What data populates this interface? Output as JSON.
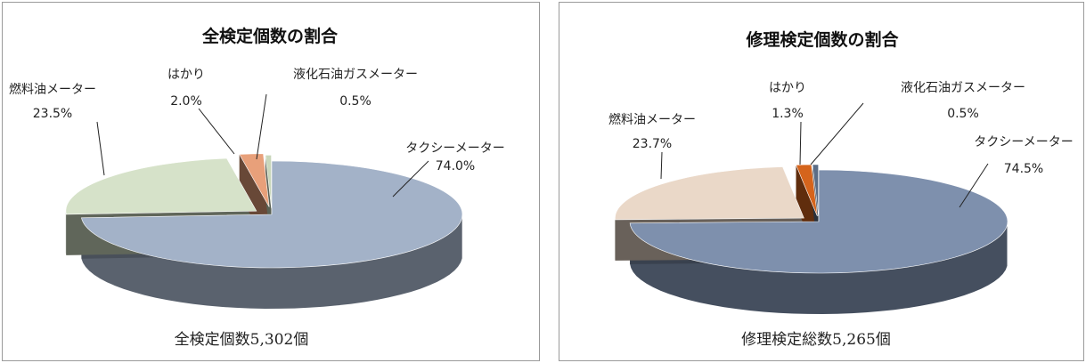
{
  "chart_data": [
    {
      "type": "pie",
      "title": "全検定個数の割合",
      "caption": "全検定個数5,302個",
      "slices": [
        {
          "name": "タクシーメーター",
          "value": 74.0,
          "label": "74.0%",
          "color": "#a3b2c8"
        },
        {
          "name": "燃料油メーター",
          "value": 23.5,
          "label": "23.5%",
          "color": "#d6e2c9"
        },
        {
          "name": "はかり",
          "value": 2.0,
          "label": "2.0%",
          "color": "#e8a07a"
        },
        {
          "name": "液化石油ガスメーター",
          "value": 0.5,
          "label": "0.5%",
          "color": "#c9d7bb"
        }
      ]
    },
    {
      "type": "pie",
      "title": "修理検定個数の割合",
      "caption": "修理検定総数5,265個",
      "slices": [
        {
          "name": "タクシーメーター",
          "value": 74.5,
          "label": "74.5%",
          "color": "#7e90ad"
        },
        {
          "name": "燃料油メーター",
          "value": 23.7,
          "label": "23.7%",
          "color": "#ead8c8"
        },
        {
          "name": "はかり",
          "value": 1.3,
          "label": "1.3%",
          "color": "#d5641c"
        },
        {
          "name": "液化石油ガスメーター",
          "value": 0.5,
          "label": "0.5%",
          "color": "#5b6d86"
        }
      ]
    }
  ],
  "display_names": [
    [
      "タクシーメーター",
      "燃料油メーター",
      "はかり",
      "液化石油ガスメーター"
    ],
    [
      "タクシーメーター",
      "燃料油メーター",
      "はかり",
      "液化石油ガスメーター"
    ]
  ]
}
